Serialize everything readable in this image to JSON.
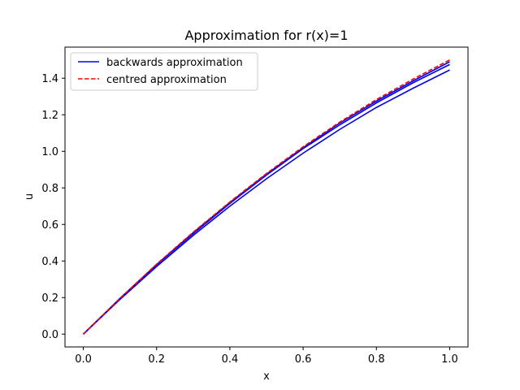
{
  "chart_data": {
    "type": "line",
    "title": "Approximation for r(x)=1",
    "xlabel": "x",
    "ylabel": "u",
    "xlim": [
      -0.05,
      1.05
    ],
    "ylim": [
      -0.07,
      1.57
    ],
    "x_ticks": [
      "0.0",
      "0.2",
      "0.4",
      "0.6",
      "0.8",
      "1.0"
    ],
    "y_ticks": [
      "0.0",
      "0.2",
      "0.4",
      "0.6",
      "0.8",
      "1.0",
      "1.2",
      "1.4"
    ],
    "legend_position": "top-left",
    "grid": false,
    "colors": {
      "backwards": "#0000ff",
      "centred": "#ff0000"
    },
    "series": [
      {
        "name": "backwards approximation",
        "style": "solid",
        "x": [
          0.0,
          0.1,
          0.2,
          0.3,
          0.4,
          0.5,
          0.6,
          0.7,
          0.8,
          0.9,
          1.0
        ],
        "y": [
          0.0,
          0.19,
          0.37,
          0.54,
          0.7,
          0.85,
          0.99,
          1.12,
          1.24,
          1.345,
          1.445
        ]
      },
      {
        "name": "",
        "style": "solid",
        "x": [
          0.0,
          0.1,
          0.2,
          0.3,
          0.4,
          0.5,
          0.6,
          0.7,
          0.8,
          0.9,
          1.0
        ],
        "y": [
          0.0,
          0.195,
          0.38,
          0.55,
          0.715,
          0.87,
          1.015,
          1.145,
          1.265,
          1.375,
          1.475
        ]
      },
      {
        "name": "",
        "style": "solid",
        "x": [
          0.0,
          0.1,
          0.2,
          0.3,
          0.4,
          0.5,
          0.6,
          0.7,
          0.8,
          0.9,
          1.0
        ],
        "y": [
          0.0,
          0.195,
          0.38,
          0.555,
          0.72,
          0.875,
          1.02,
          1.155,
          1.275,
          1.385,
          1.49
        ]
      },
      {
        "name": "centred approximation",
        "style": "dashed",
        "x": [
          0.0,
          0.1,
          0.2,
          0.3,
          0.4,
          0.5,
          0.6,
          0.7,
          0.8,
          0.9,
          1.0
        ],
        "y": [
          0.0,
          0.196,
          0.383,
          0.558,
          0.723,
          0.879,
          1.025,
          1.16,
          1.283,
          1.395,
          1.5
        ]
      }
    ]
  }
}
